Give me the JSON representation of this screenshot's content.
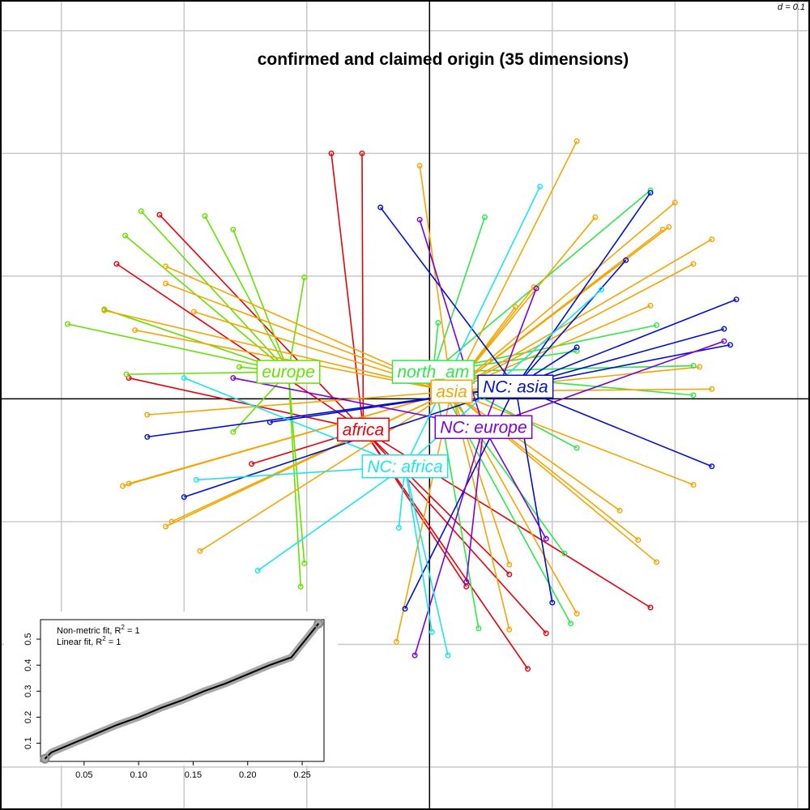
{
  "chart_data": {
    "type": "scatter",
    "title": "confirmed and claimed origin (35 dimensions)",
    "grid_label": "d = 0.1",
    "axes": {
      "xlim": [
        -0.35,
        0.31
      ],
      "ylim": [
        -0.335,
        0.325
      ],
      "grid_step": 0.1,
      "grid": true,
      "zero_lines": true
    },
    "groups": [
      {
        "name": "africa",
        "color": "#e8000b",
        "centroid": [
          -0.054,
          -0.025
        ],
        "points": [
          [
            -0.08,
            0.2
          ],
          [
            -0.055,
            0.2
          ],
          [
            -0.22,
            0.15
          ],
          [
            -0.255,
            0.11
          ],
          [
            -0.245,
            0.017
          ],
          [
            -0.145,
            -0.053
          ],
          [
            0.03,
            -0.153
          ],
          [
            0.065,
            -0.143
          ],
          [
            0.08,
            -0.22
          ],
          [
            0.095,
            -0.191
          ],
          [
            0.18,
            -0.17
          ]
        ]
      },
      {
        "name": "europe",
        "color": "#66e000",
        "centroid": [
          -0.115,
          0.022
        ],
        "points": [
          [
            -0.235,
            0.153
          ],
          [
            -0.183,
            0.149
          ],
          [
            -0.248,
            0.133
          ],
          [
            -0.265,
            0.073
          ],
          [
            -0.295,
            0.061
          ],
          [
            -0.247,
            0.02
          ],
          [
            -0.102,
            0.099
          ],
          [
            -0.16,
            0.138
          ],
          [
            -0.155,
            0.026
          ],
          [
            -0.16,
            -0.027
          ],
          [
            -0.102,
            -0.134
          ],
          [
            -0.105,
            -0.153
          ]
        ]
      },
      {
        "name": "north_am",
        "color": "#2ee84a",
        "centroid": [
          0.003,
          0.022
        ],
        "points": [
          [
            0.045,
            0.148
          ],
          [
            0.18,
            0.17
          ],
          [
            0.185,
            0.06
          ],
          [
            0.215,
            0.003
          ],
          [
            0.215,
            0.027
          ],
          [
            0.12,
            0.039
          ],
          [
            0.12,
            -0.04
          ],
          [
            0.11,
            -0.126
          ],
          [
            0.04,
            -0.187
          ],
          [
            0.007,
            0.062
          ],
          [
            0.115,
            -0.183
          ]
        ]
      },
      {
        "name": "asia",
        "color": "#f5a500",
        "centroid": [
          0.018,
          0.006
        ],
        "points": [
          [
            -0.008,
            0.19
          ],
          [
            0.12,
            0.21
          ],
          [
            0.135,
            0.148
          ],
          [
            0.2,
            0.16
          ],
          [
            0.195,
            0.14
          ],
          [
            0.19,
            0.138
          ],
          [
            0.23,
            0.13
          ],
          [
            0.215,
            0.11
          ],
          [
            0.085,
            0.091
          ],
          [
            0.07,
            0.075
          ],
          [
            0.18,
            0.076
          ],
          [
            0.22,
            0.026
          ],
          [
            0.23,
            0.008
          ],
          [
            0.215,
            -0.07
          ],
          [
            0.155,
            -0.091
          ],
          [
            0.17,
            -0.115
          ],
          [
            0.185,
            -0.133
          ],
          [
            0.065,
            -0.135
          ],
          [
            0.12,
            -0.175
          ],
          [
            0.065,
            -0.188
          ],
          [
            -0.027,
            -0.198
          ],
          [
            -0.215,
            -0.104
          ],
          [
            -0.21,
            -0.1
          ],
          [
            -0.187,
            -0.124
          ],
          [
            -0.245,
            -0.069
          ],
          [
            -0.25,
            -0.071
          ],
          [
            -0.23,
            -0.013
          ],
          [
            -0.215,
            0.094
          ],
          [
            -0.265,
            0.072
          ],
          [
            -0.24,
            0.056
          ],
          [
            -0.192,
            0.071
          ],
          [
            -0.215,
            0.108
          ]
        ]
      },
      {
        "name": "NC: asia",
        "color": "#0010d0",
        "centroid": [
          0.07,
          0.01
        ],
        "points": [
          [
            -0.04,
            0.156
          ],
          [
            0.18,
            0.168
          ],
          [
            0.16,
            0.113
          ],
          [
            0.25,
            0.081
          ],
          [
            0.24,
            0.057
          ],
          [
            0.245,
            0.044
          ],
          [
            0.23,
            -0.055
          ],
          [
            0.12,
            0.042
          ],
          [
            0.1,
            -0.166
          ],
          [
            -0.02,
            -0.171
          ],
          [
            -0.2,
            -0.08
          ],
          [
            -0.23,
            -0.031
          ],
          [
            -0.13,
            -0.019
          ]
        ]
      },
      {
        "name": "NC: europe",
        "color": "#7a00e0",
        "centroid": [
          0.044,
          -0.023
        ],
        "points": [
          [
            -0.008,
            0.146
          ],
          [
            0.087,
            0.09
          ],
          [
            0.24,
            0.047
          ],
          [
            0.095,
            -0.114
          ],
          [
            0.03,
            -0.149
          ],
          [
            -0.012,
            -0.209
          ],
          [
            -0.16,
            0.017
          ]
        ]
      },
      {
        "name": "NC: africa",
        "color": "#1ae4ef",
        "centroid": [
          -0.02,
          -0.055
        ],
        "points": [
          [
            0.09,
            0.173
          ],
          [
            0.14,
            0.089
          ],
          [
            -0.2,
            0.017
          ],
          [
            -0.19,
            -0.066
          ],
          [
            -0.14,
            -0.14
          ],
          [
            -0.025,
            -0.105
          ],
          [
            0.002,
            -0.19
          ],
          [
            0.015,
            -0.209
          ]
        ]
      }
    ],
    "inset": {
      "type": "line",
      "legend": [
        "Non-metric fit, R",
        "2",
        " = 1",
        "Linear fit, R",
        "2",
        " = 1"
      ],
      "x_ticks": [
        "0.05",
        "0.10",
        "0.15",
        "0.20",
        "0.25"
      ],
      "y_ticks": [
        "0.1",
        "0.2",
        "0.3",
        "0.4",
        "0.5"
      ],
      "xlim": [
        0.01,
        0.27
      ],
      "ylim": [
        0.03,
        0.575
      ],
      "x": [
        0.014,
        0.02,
        0.04,
        0.06,
        0.08,
        0.1,
        0.12,
        0.14,
        0.16,
        0.18,
        0.2,
        0.22,
        0.24,
        0.265
      ],
      "y": [
        0.04,
        0.065,
        0.1,
        0.135,
        0.17,
        0.2,
        0.235,
        0.265,
        0.3,
        0.33,
        0.365,
        0.4,
        0.43,
        0.56
      ]
    }
  }
}
